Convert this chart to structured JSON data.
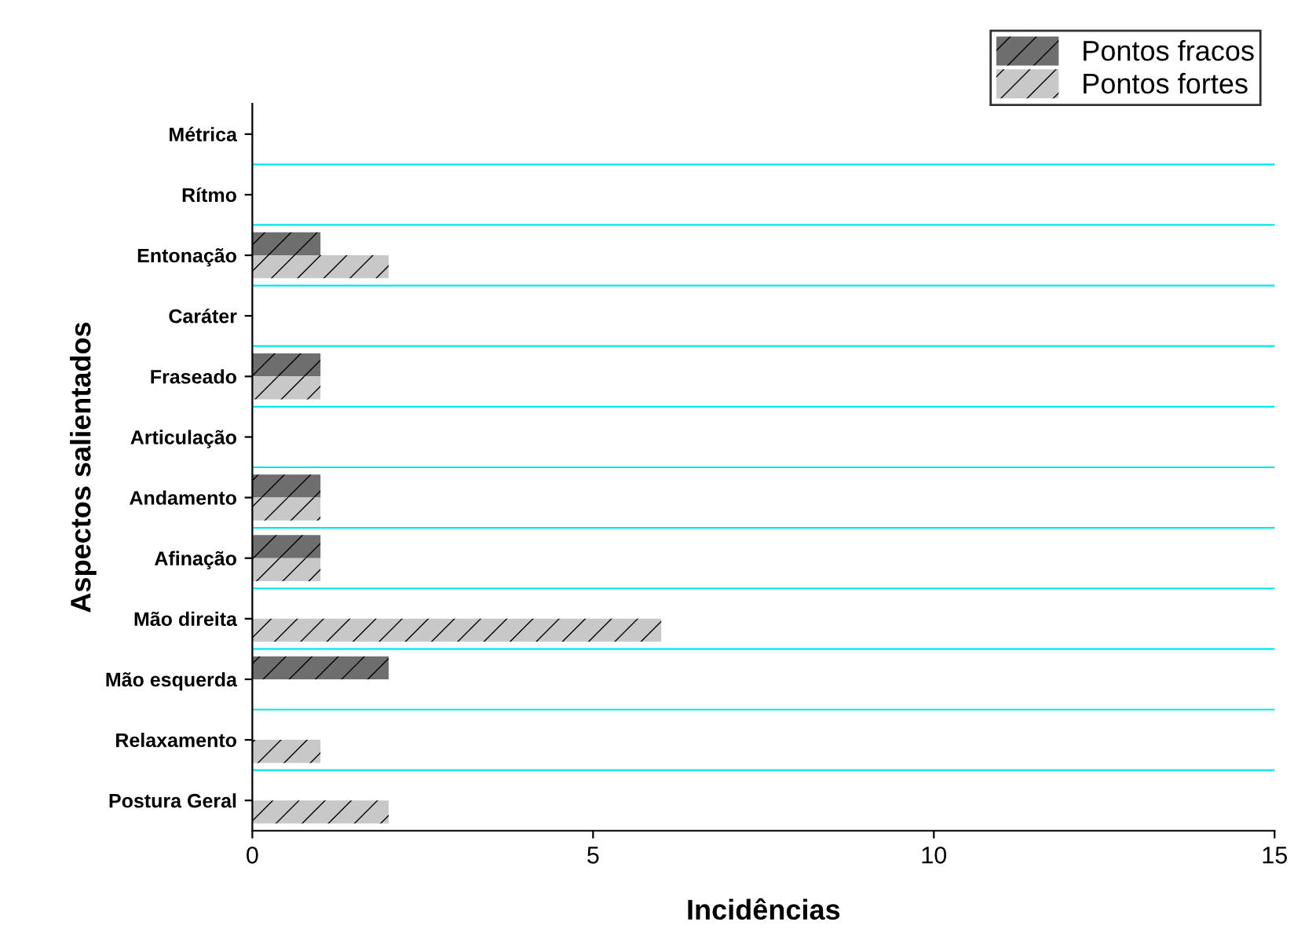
{
  "chart_data": {
    "type": "bar",
    "orientation": "horizontal",
    "xlabel": "Incidências",
    "ylabel": "Aspectos salientados",
    "categories": [
      "Métrica",
      "Rítmo",
      "Entonação",
      "Caráter",
      "Fraseado",
      "Articulação",
      "Andamento",
      "Afinação",
      "Mão direita",
      "Mão esquerda",
      "Relaxamento",
      "Postura Geral"
    ],
    "series": [
      {
        "name": "Pontos fracos",
        "color": "#6e6e6e",
        "values": [
          0,
          0,
          1,
          0,
          1,
          0,
          1,
          1,
          0,
          2,
          0,
          0
        ]
      },
      {
        "name": "Pontos fortes",
        "color": "#c8c8c8",
        "values": [
          0,
          0,
          2,
          0,
          1,
          0,
          1,
          1,
          6,
          0,
          1,
          2
        ]
      }
    ],
    "xlim": [
      0,
      15
    ],
    "xticks": [
      0,
      5,
      10,
      15
    ],
    "grid": "y",
    "legend": "top right"
  }
}
